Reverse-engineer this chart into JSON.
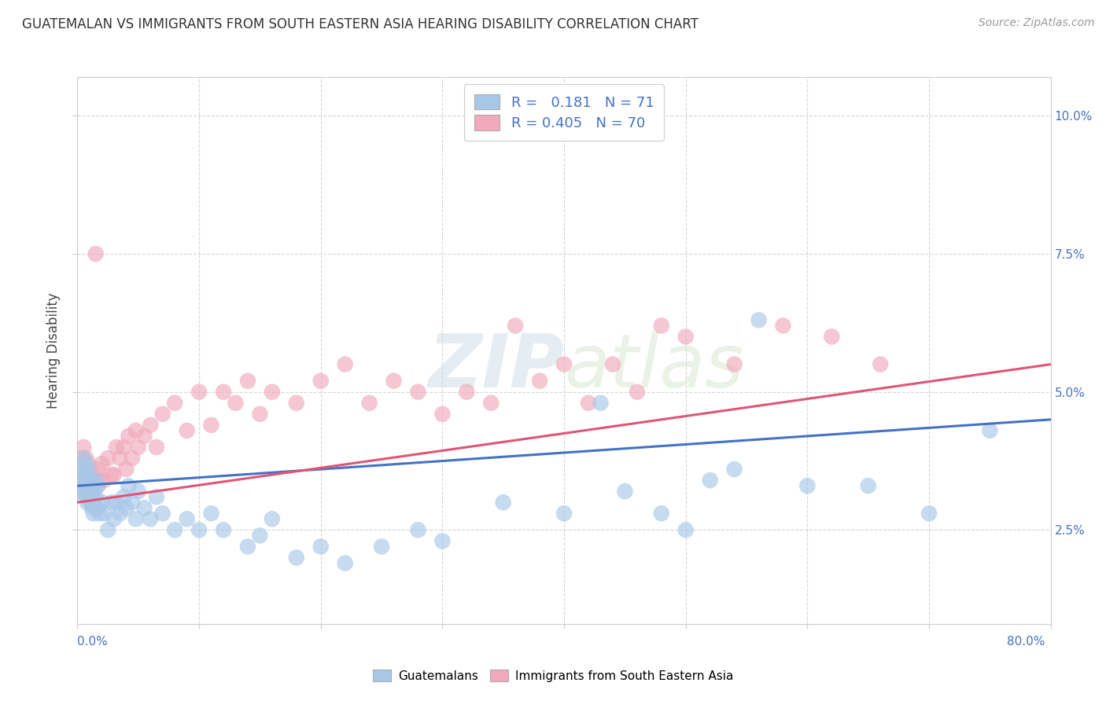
{
  "title": "GUATEMALAN VS IMMIGRANTS FROM SOUTH EASTERN ASIA HEARING DISABILITY CORRELATION CHART",
  "source": "Source: ZipAtlas.com",
  "ylabel": "Hearing Disability",
  "x_range": [
    0.0,
    0.8
  ],
  "y_range": [
    0.008,
    0.107
  ],
  "r_blue": 0.181,
  "n_blue": 71,
  "r_pink": 0.405,
  "n_pink": 70,
  "color_blue": "#a8c8e8",
  "color_pink": "#f0aabb",
  "color_blue_line": "#4472c4",
  "color_pink_line": "#e05575",
  "legend_label_blue": "Guatemalans",
  "legend_label_pink": "Immigrants from South Eastern Asia",
  "watermark": "ZIPatlas",
  "blue_scatter_x": [
    0.002,
    0.003,
    0.004,
    0.005,
    0.005,
    0.006,
    0.006,
    0.007,
    0.007,
    0.008,
    0.008,
    0.009,
    0.009,
    0.01,
    0.01,
    0.011,
    0.011,
    0.012,
    0.012,
    0.013,
    0.013,
    0.014,
    0.015,
    0.015,
    0.016,
    0.017,
    0.018,
    0.02,
    0.022,
    0.025,
    0.028,
    0.03,
    0.032,
    0.035,
    0.038,
    0.04,
    0.042,
    0.045,
    0.048,
    0.05,
    0.055,
    0.06,
    0.065,
    0.07,
    0.08,
    0.09,
    0.1,
    0.11,
    0.12,
    0.14,
    0.15,
    0.16,
    0.18,
    0.2,
    0.22,
    0.25,
    0.28,
    0.3,
    0.35,
    0.4,
    0.43,
    0.45,
    0.48,
    0.5,
    0.52,
    0.54,
    0.56,
    0.6,
    0.65,
    0.7,
    0.75
  ],
  "blue_scatter_y": [
    0.034,
    0.032,
    0.036,
    0.033,
    0.038,
    0.031,
    0.035,
    0.033,
    0.037,
    0.03,
    0.034,
    0.032,
    0.036,
    0.031,
    0.034,
    0.03,
    0.033,
    0.029,
    0.032,
    0.028,
    0.033,
    0.03,
    0.031,
    0.034,
    0.029,
    0.033,
    0.028,
    0.03,
    0.028,
    0.025,
    0.03,
    0.027,
    0.03,
    0.028,
    0.031,
    0.029,
    0.033,
    0.03,
    0.027,
    0.032,
    0.029,
    0.027,
    0.031,
    0.028,
    0.025,
    0.027,
    0.025,
    0.028,
    0.025,
    0.022,
    0.024,
    0.027,
    0.02,
    0.022,
    0.019,
    0.022,
    0.025,
    0.023,
    0.03,
    0.028,
    0.048,
    0.032,
    0.028,
    0.025,
    0.034,
    0.036,
    0.063,
    0.033,
    0.033,
    0.028,
    0.043
  ],
  "pink_scatter_x": [
    0.002,
    0.003,
    0.004,
    0.005,
    0.005,
    0.006,
    0.006,
    0.007,
    0.007,
    0.008,
    0.008,
    0.009,
    0.009,
    0.01,
    0.01,
    0.011,
    0.012,
    0.013,
    0.014,
    0.015,
    0.016,
    0.017,
    0.018,
    0.02,
    0.022,
    0.025,
    0.028,
    0.03,
    0.032,
    0.035,
    0.038,
    0.04,
    0.042,
    0.045,
    0.048,
    0.05,
    0.055,
    0.06,
    0.065,
    0.07,
    0.08,
    0.09,
    0.1,
    0.11,
    0.12,
    0.13,
    0.14,
    0.15,
    0.16,
    0.18,
    0.2,
    0.22,
    0.24,
    0.26,
    0.28,
    0.3,
    0.32,
    0.34,
    0.36,
    0.38,
    0.4,
    0.42,
    0.44,
    0.46,
    0.48,
    0.5,
    0.54,
    0.58,
    0.62,
    0.66
  ],
  "pink_scatter_y": [
    0.035,
    0.033,
    0.038,
    0.034,
    0.04,
    0.032,
    0.036,
    0.034,
    0.038,
    0.032,
    0.035,
    0.033,
    0.037,
    0.032,
    0.035,
    0.033,
    0.035,
    0.032,
    0.034,
    0.075,
    0.033,
    0.036,
    0.034,
    0.037,
    0.034,
    0.038,
    0.035,
    0.035,
    0.04,
    0.038,
    0.04,
    0.036,
    0.042,
    0.038,
    0.043,
    0.04,
    0.042,
    0.044,
    0.04,
    0.046,
    0.048,
    0.043,
    0.05,
    0.044,
    0.05,
    0.048,
    0.052,
    0.046,
    0.05,
    0.048,
    0.052,
    0.055,
    0.048,
    0.052,
    0.05,
    0.046,
    0.05,
    0.048,
    0.062,
    0.052,
    0.055,
    0.048,
    0.055,
    0.05,
    0.062,
    0.06,
    0.055,
    0.062,
    0.06,
    0.055
  ]
}
